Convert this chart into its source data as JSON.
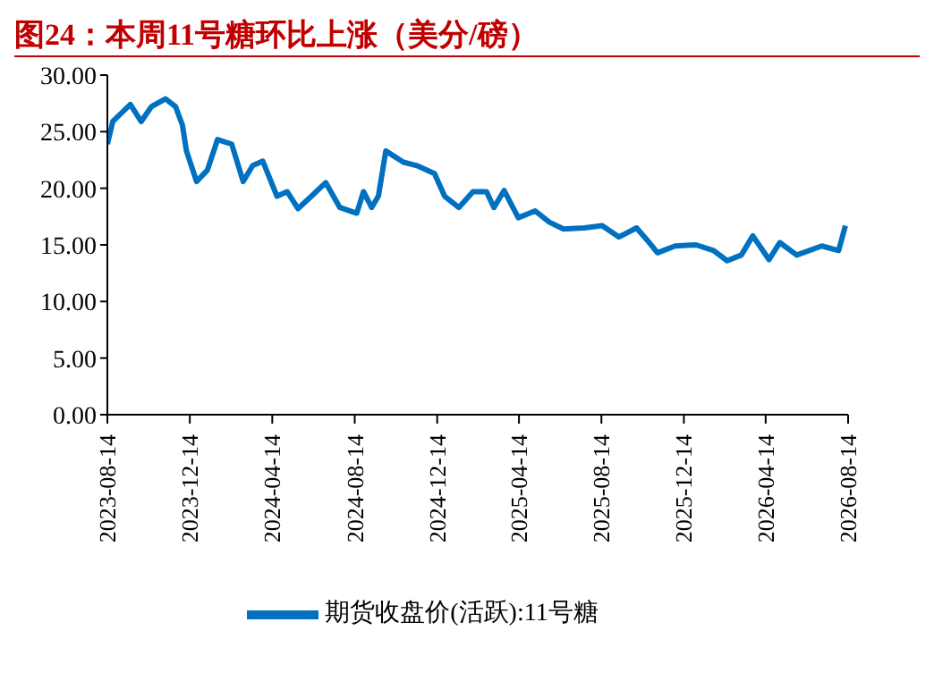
{
  "chart_data": {
    "type": "line",
    "title": "图24：本周11号糖环比上涨（美分/磅）",
    "x": [
      "2023-08-14",
      "2023-08-22",
      "2023-09-17",
      "2023-10-03",
      "2023-10-18",
      "2023-11-08",
      "2023-11-23",
      "2023-12-03",
      "2023-12-09",
      "2023-12-24",
      "2024-01-09",
      "2024-01-24",
      "2024-02-14",
      "2024-03-02",
      "2024-03-16",
      "2024-03-31",
      "2024-04-21",
      "2024-05-06",
      "2024-05-22",
      "2024-06-11",
      "2024-07-02",
      "2024-07-23",
      "2024-08-17",
      "2024-08-27",
      "2024-09-08",
      "2024-09-18",
      "2024-09-29",
      "2024-10-25",
      "2024-11-14",
      "2024-12-10",
      "2024-12-25",
      "2025-01-15",
      "2025-02-05",
      "2025-02-25",
      "2025-03-08",
      "2025-03-23",
      "2025-04-13",
      "2025-05-08",
      "2025-05-29",
      "2025-06-19",
      "2025-07-20",
      "2025-08-15",
      "2025-09-09",
      "2025-10-05",
      "2025-10-21",
      "2025-11-05",
      "2025-12-01",
      "2026-01-01",
      "2026-01-27",
      "2026-02-16",
      "2026-03-09",
      "2026-03-26",
      "2026-04-19",
      "2026-05-05",
      "2026-05-30",
      "2026-07-06",
      "2026-07-31",
      "2026-08-10"
    ],
    "series": [
      {
        "name": "期货收盘价(活跃):11号糖",
        "color": "#0070c0",
        "values": [
          23.9,
          25.9,
          27.4,
          25.9,
          27.2,
          27.9,
          27.2,
          25.6,
          23.3,
          20.6,
          21.6,
          24.3,
          23.9,
          20.6,
          22.0,
          22.4,
          19.3,
          19.7,
          18.2,
          19.3,
          20.5,
          18.3,
          17.8,
          19.7,
          18.3,
          19.3,
          23.3,
          22.3,
          22.0,
          21.3,
          19.3,
          18.3,
          19.7,
          19.7,
          18.3,
          19.8,
          17.4,
          18.0,
          17.0,
          16.4,
          16.5,
          16.7,
          15.7,
          16.5,
          15.4,
          14.3,
          14.9,
          15.0,
          14.5,
          13.6,
          14.1,
          15.8,
          13.7,
          15.2,
          14.1,
          14.9,
          14.5,
          16.7
        ]
      }
    ],
    "xlim": [
      "2023-08-14",
      "2026-08-14"
    ],
    "xticks": [
      "2023-08-14",
      "2023-12-14",
      "2024-04-14",
      "2024-08-14",
      "2024-12-14",
      "2025-04-14",
      "2025-08-14",
      "2025-12-14",
      "2026-04-14",
      "2026-08-14"
    ],
    "ylim": [
      0,
      30
    ],
    "yticks": [
      {
        "value": 0,
        "label": "0.00"
      },
      {
        "value": 5,
        "label": "5.00"
      },
      {
        "value": 10,
        "label": "10.00"
      },
      {
        "value": 15,
        "label": "15.00"
      },
      {
        "value": 20,
        "label": "20.00"
      },
      {
        "value": 25,
        "label": "25.00"
      },
      {
        "value": 30,
        "label": "30.00"
      }
    ],
    "grid": false,
    "legend": "bottom",
    "marker": "none",
    "line_style": "solid"
  }
}
